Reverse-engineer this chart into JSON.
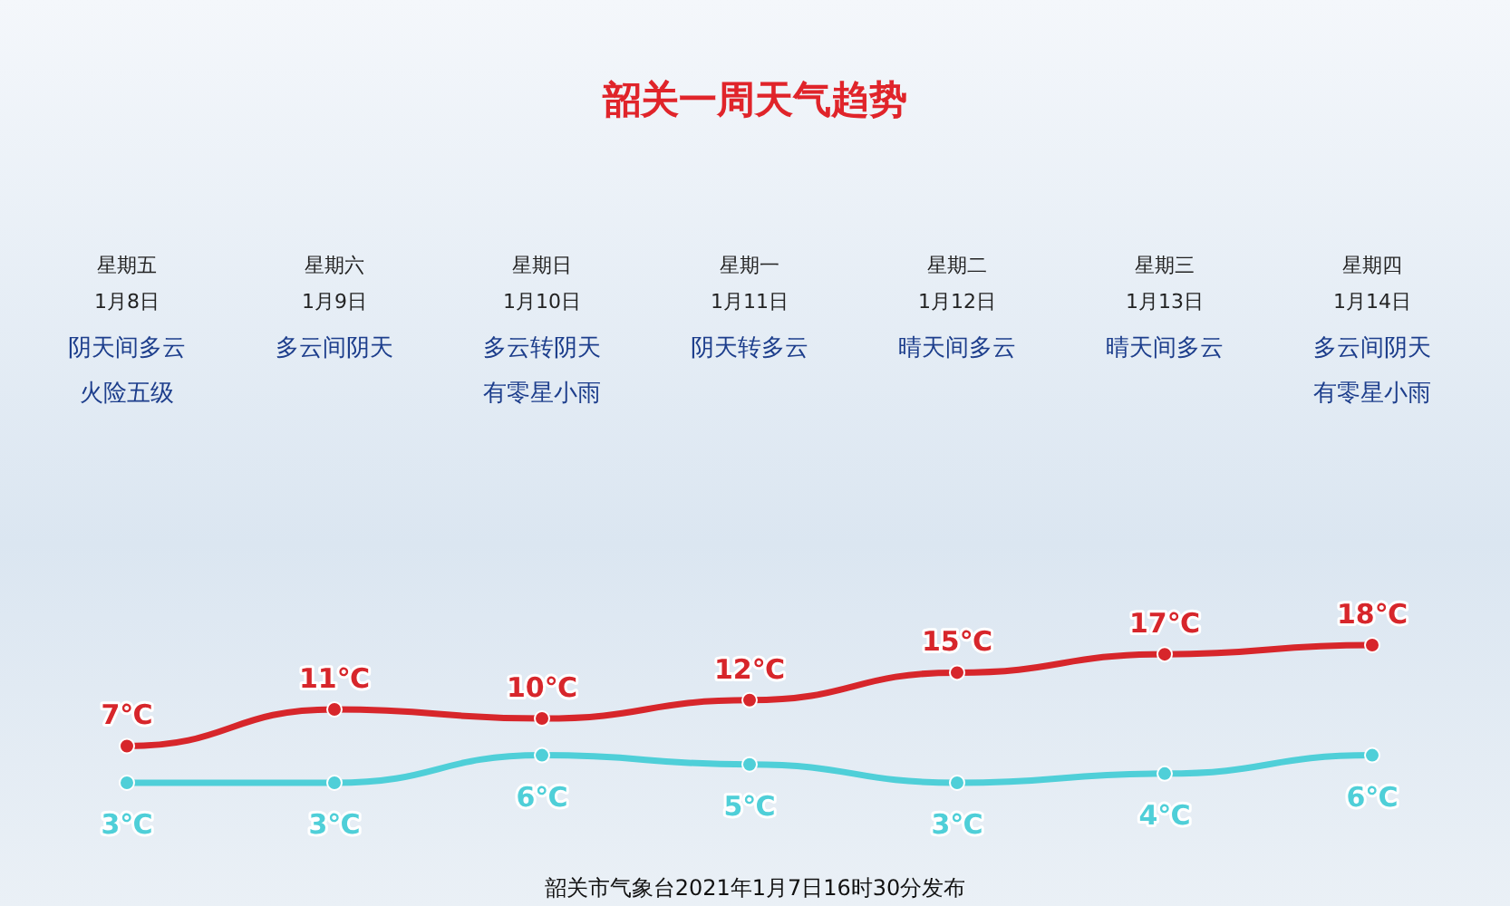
{
  "chart_data": {
    "type": "line",
    "title": "韶关一周天气趋势",
    "categories": [
      "星期五",
      "星期六",
      "星期日",
      "星期一",
      "星期二",
      "星期三",
      "星期四"
    ],
    "series": [
      {
        "color": "#d7262b",
        "values": [
          7,
          11,
          10,
          12,
          15,
          17,
          18
        ],
        "value_labels": [
          "7℃",
          "11℃",
          "10℃",
          "12℃",
          "15℃",
          "17℃",
          "18℃"
        ]
      },
      {
        "color": "#4fcfd8",
        "values": [
          3,
          3,
          6,
          5,
          3,
          4,
          6
        ],
        "value_labels": [
          "3℃",
          "3℃",
          "6℃",
          "5℃",
          "3℃",
          "4℃",
          "6℃"
        ]
      }
    ],
    "marker": "circle",
    "line_style": "solid",
    "annotations": [
      "1月8日",
      "阴天间多云",
      "火险五级",
      "1月9日",
      "多云间阴天",
      "1月10日",
      "多云转阴天",
      "有零星小雨",
      "1月11日",
      "阴天转多云",
      "1月12日",
      "晴天间多云",
      "1月13日",
      "晴天间多云",
      "1月14日",
      "多云间阴天",
      "有零星小雨",
      "韶关市气象台2021年1月7日16时30分发布"
    ]
  }
}
